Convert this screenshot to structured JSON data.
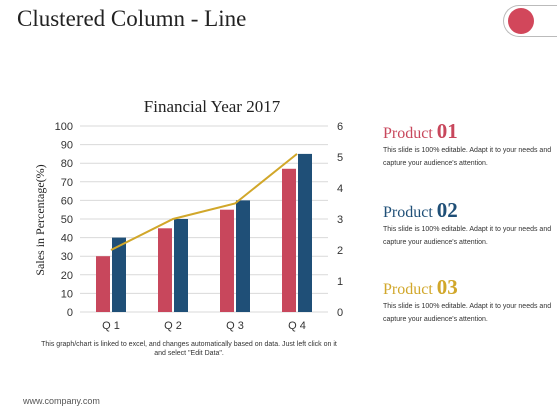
{
  "slide": {
    "title": "Clustered Column - Line",
    "note": "This graph/chart is linked to excel, and changes automatically based on data. Just left click on it and select \"Edit Data\".",
    "footer": "www.company.com"
  },
  "products": [
    {
      "name": "Product",
      "number": "01",
      "description": "This slide is 100% editable. Adapt it to your needs and capture your audience's attention."
    },
    {
      "name": "Product",
      "number": "02",
      "description": "This slide is 100% editable. Adapt it to your needs and capture your audience's attention."
    },
    {
      "name": "Product",
      "number": "03",
      "description": "This slide is 100% editable. Adapt it to your needs and capture your audience's attention."
    }
  ],
  "colors": {
    "series1": "#c8475c",
    "series2": "#1f4f77",
    "line": "#d1a72a"
  },
  "chart_data": {
    "type": "bar",
    "title": "Financial Year 2017",
    "ylabel": "Sales in Percentage(%)",
    "xlabel": "",
    "categories": [
      "Q 1",
      "Q 2",
      "Q 3",
      "Q 4"
    ],
    "ylim": [
      0,
      100
    ],
    "yticks": [
      "0",
      "10",
      "20",
      "30",
      "40",
      "50",
      "60",
      "70",
      "80",
      "90",
      "100"
    ],
    "y2lim": [
      0,
      6
    ],
    "y2ticks": [
      "0",
      "1",
      "2",
      "3",
      "4",
      "5",
      "6"
    ],
    "grid": true,
    "legend": "none",
    "series": [
      {
        "type": "bar",
        "axis": "left",
        "values": [
          30,
          45,
          55,
          77
        ]
      },
      {
        "type": "bar",
        "axis": "left",
        "values": [
          40,
          50,
          60,
          85
        ]
      },
      {
        "type": "line",
        "axis": "right",
        "values": [
          2.0,
          3.0,
          3.5,
          5.1
        ]
      }
    ]
  }
}
